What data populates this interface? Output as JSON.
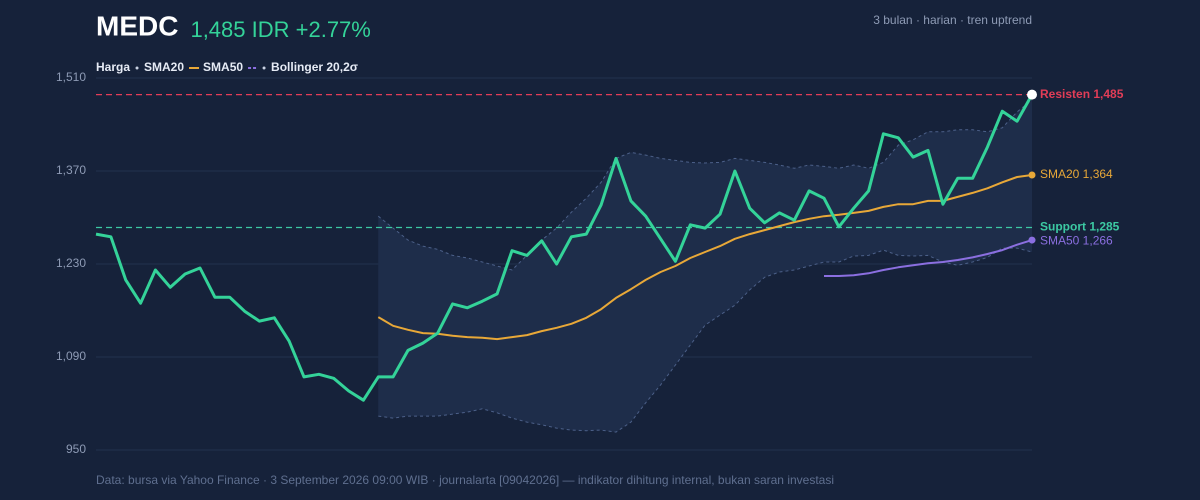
{
  "chart_data": {
    "type": "line",
    "title": "MEDC",
    "price_label": "1,485 IDR +2.77%",
    "subtitle": "3 bulan · harian · tren uptrend",
    "footer": "Data: bursa via Yahoo Finance · 3 September 2026 09:00 WIB · journalarta [09042026] — indikator dihitung internal, bukan saran investasi",
    "ylim": [
      950,
      1510
    ],
    "yticks": [
      950,
      {
        "value": 1090,
        "label": "1,090"
      },
      {
        "value": 1230,
        "label": "1,230"
      },
      {
        "value": 1370,
        "label": "1,370"
      },
      {
        "value": 1510,
        "label": "1,510"
      }
    ],
    "grid": true,
    "categories": [
      null,
      null,
      null,
      null,
      null,
      null,
      null,
      null,
      null,
      null,
      null,
      null,
      null,
      null,
      null,
      null,
      null,
      null,
      null,
      null,
      null,
      null,
      null,
      null,
      null,
      null,
      null,
      null,
      null,
      null,
      null,
      null,
      null,
      null,
      null,
      null,
      null,
      null,
      null,
      null,
      null,
      null,
      null,
      null,
      null,
      null,
      null,
      null,
      null,
      null,
      null,
      null,
      null,
      null,
      null,
      null,
      null,
      null,
      null,
      null,
      null,
      null,
      null,
      null
    ],
    "series": [
      {
        "name": "Harga",
        "color": "#34d399",
        "values": [
          1275,
          1271,
          1206,
          1171,
          1221,
          1195,
          1215,
          1224,
          1180,
          1180,
          1159,
          1144,
          1149,
          1114,
          1060,
          1064,
          1058,
          1039,
          1025,
          1060,
          1060,
          1100,
          1111,
          1126,
          1170,
          1164,
          1174,
          1185,
          1250,
          1243,
          1265,
          1230,
          1271,
          1275,
          1319,
          1389,
          1325,
          1302,
          1268,
          1234,
          1289,
          1284,
          1305,
          1370,
          1314,
          1292,
          1307,
          1296,
          1340,
          1329,
          1286,
          1314,
          1340,
          1426,
          1420,
          1391,
          1401,
          1320,
          1359,
          1359,
          1406,
          1460,
          1445,
          1485
        ]
      },
      {
        "name": "SMA20",
        "color": "#e8a838",
        "end_label": "SMA20 1,364",
        "values": [
          null,
          null,
          null,
          null,
          null,
          null,
          null,
          null,
          null,
          null,
          null,
          null,
          null,
          null,
          null,
          null,
          null,
          null,
          null,
          1150,
          1137,
          1131,
          1126,
          1125,
          1122,
          1120,
          1119,
          1117,
          1120,
          1123,
          1129,
          1134,
          1140,
          1149,
          1162,
          1179,
          1192,
          1206,
          1218,
          1227,
          1239,
          1248,
          1257,
          1268,
          1275,
          1281,
          1287,
          1293,
          1298,
          1302,
          1304,
          1307,
          1310,
          1316,
          1320,
          1320,
          1325,
          1325,
          1331,
          1337,
          1344,
          1353,
          1361,
          1364
        ]
      },
      {
        "name": "SMA50",
        "color": "#8b6fe0",
        "end_label": "SMA50 1,266",
        "values": [
          null,
          null,
          null,
          null,
          null,
          null,
          null,
          null,
          null,
          null,
          null,
          null,
          null,
          null,
          null,
          null,
          null,
          null,
          null,
          null,
          null,
          null,
          null,
          null,
          null,
          null,
          null,
          null,
          null,
          null,
          null,
          null,
          null,
          null,
          null,
          null,
          null,
          null,
          null,
          null,
          null,
          null,
          null,
          null,
          null,
          null,
          null,
          null,
          null,
          1212,
          1212,
          1213,
          1216,
          1221,
          1225,
          1228,
          1231,
          1233,
          1236,
          1240,
          1245,
          1251,
          1259,
          1266
        ]
      }
    ],
    "bands": {
      "name": "Bollinger 20,2σ",
      "color": "#4c6089",
      "upper": [
        null,
        null,
        null,
        null,
        null,
        null,
        null,
        null,
        null,
        null,
        null,
        null,
        null,
        null,
        null,
        null,
        null,
        null,
        null,
        1302,
        1284,
        1266,
        1257,
        1252,
        1243,
        1239,
        1233,
        1227,
        1221,
        1243,
        1266,
        1284,
        1308,
        1329,
        1353,
        1389,
        1398,
        1394,
        1389,
        1386,
        1383,
        1382,
        1383,
        1389,
        1386,
        1383,
        1379,
        1374,
        1379,
        1377,
        1374,
        1379,
        1374,
        1383,
        1409,
        1417,
        1429,
        1429,
        1432,
        1432,
        1429,
        1435,
        1459,
        1477
      ],
      "lower": [
        null,
        null,
        null,
        null,
        null,
        null,
        null,
        null,
        null,
        null,
        null,
        null,
        null,
        null,
        null,
        null,
        null,
        null,
        null,
        1001,
        998,
        1001,
        1001,
        1001,
        1004,
        1007,
        1012,
        1006,
        998,
        992,
        988,
        983,
        980,
        979,
        980,
        977,
        992,
        1021,
        1048,
        1078,
        1108,
        1138,
        1153,
        1168,
        1191,
        1210,
        1218,
        1221,
        1227,
        1233,
        1233,
        1242,
        1243,
        1251,
        1243,
        1242,
        1243,
        1233,
        1228,
        1233,
        1240,
        1254,
        1254,
        1248
      ]
    },
    "levels": [
      {
        "name": "Resisten",
        "value": 1485,
        "label": "Resisten 1,485",
        "color": "#e23d57"
      },
      {
        "name": "Support",
        "value": 1285,
        "label": "Support 1,285",
        "color": "#3cc9a3"
      }
    ]
  }
}
